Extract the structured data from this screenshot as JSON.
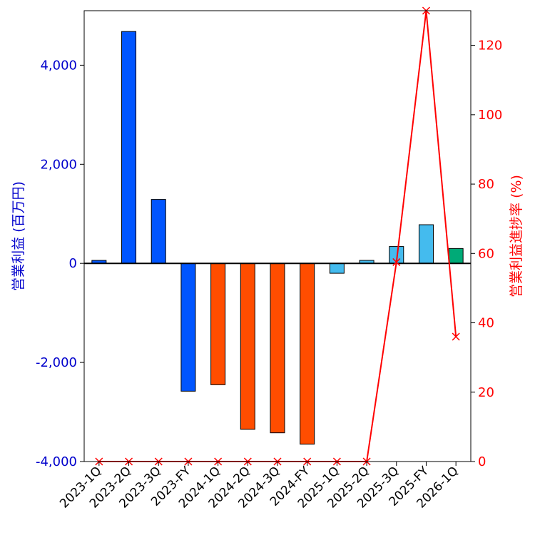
{
  "chart_data": {
    "type": "bar",
    "categories": [
      "2023-1Q",
      "2023-2Q",
      "2023-3Q",
      "2023-FY",
      "2024-1Q",
      "2024-2Q",
      "2024-3Q",
      "2024-FY",
      "2025-1Q",
      "2025-2Q",
      "2025-3Q",
      "2025-FY",
      "2026-1Q"
    ],
    "series": [
      {
        "name": "営業利益 (百万円)",
        "axis": "left",
        "type": "bar",
        "values": [
          60,
          4680,
          1290,
          -2580,
          -2450,
          -3350,
          -3420,
          -3650,
          -200,
          60,
          340,
          780,
          300
        ],
        "colors": [
          "#0055ff",
          "#0055ff",
          "#0055ff",
          "#0055ff",
          "#ff4d00",
          "#ff4d00",
          "#ff4d00",
          "#ff4d00",
          "#44bbee",
          "#44bbee",
          "#44bbee",
          "#44bbee",
          "#00aa77"
        ]
      },
      {
        "name": "営業利益進捗率 (%)",
        "axis": "right",
        "type": "line",
        "values": [
          0,
          0,
          0,
          0,
          0,
          0,
          0,
          0,
          0,
          0,
          57.5,
          130,
          36
        ],
        "color": "#ff0000"
      }
    ],
    "ylabel": "営業利益 (百万円)",
    "y2label": "営業利益進捗率 (%)",
    "ylim": [
      -4000,
      5100
    ],
    "y2lim": [
      0,
      130
    ],
    "yticks": [
      -4000,
      -2000,
      0,
      2000,
      4000
    ],
    "ytick_labels": [
      "-4,000",
      "-2,000",
      "0",
      "2,000",
      "4,000"
    ],
    "y2ticks": [
      0,
      20,
      40,
      60,
      80,
      100,
      120
    ],
    "y2tick_labels": [
      "0",
      "20",
      "40",
      "60",
      "80",
      "100",
      "120"
    ],
    "grid": false
  }
}
